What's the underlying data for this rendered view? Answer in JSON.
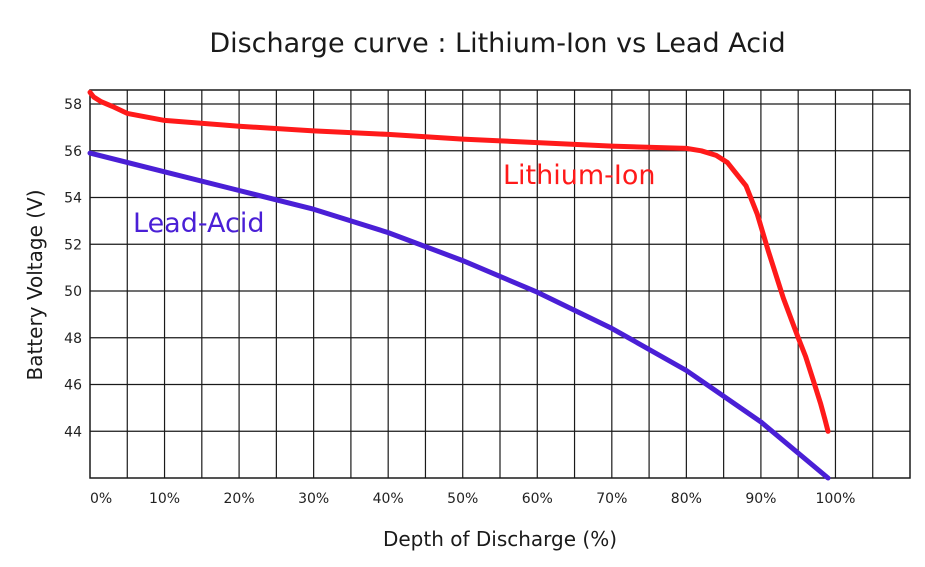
{
  "chart_data": {
    "type": "line",
    "title": "Discharge curve : Lithium-Ion vs Lead Acid",
    "xlabel": "Depth of Discharge (%)",
    "ylabel": "Battery Voltage (V)",
    "x_ticks": [
      "0%",
      "10%",
      "20%",
      "30%",
      "40%",
      "50%",
      "60%",
      "70%",
      "80%",
      "90%",
      "100%"
    ],
    "y_ticks": [
      "44",
      "46",
      "48",
      "50",
      "52",
      "54",
      "56",
      "58"
    ],
    "xlim": [
      0,
      110
    ],
    "ylim": [
      42,
      58.6
    ],
    "grid": true,
    "series": [
      {
        "name": "Lithium-Ion",
        "color": "#ff1a1a",
        "x": [
          0,
          0.5,
          1.5,
          3,
          5,
          10,
          20,
          30,
          40,
          50,
          60,
          70,
          80,
          82,
          84,
          85.5,
          86.5,
          88,
          89.5,
          91,
          93,
          95,
          96,
          97,
          98,
          98.6,
          99
        ],
        "y": [
          58.5,
          58.3,
          58.1,
          57.9,
          57.6,
          57.3,
          57.05,
          56.85,
          56.7,
          56.5,
          56.35,
          56.2,
          56.1,
          56.0,
          55.8,
          55.5,
          55.1,
          54.5,
          53.3,
          51.7,
          49.7,
          48.0,
          47.2,
          46.2,
          45.2,
          44.5,
          44.0
        ]
      },
      {
        "name": "Lead-Acid",
        "color": "#4a1fd6",
        "x": [
          0,
          10,
          20,
          30,
          40,
          50,
          60,
          70,
          80,
          90,
          99
        ],
        "y": [
          55.9,
          55.1,
          54.3,
          53.5,
          52.5,
          51.3,
          49.95,
          48.4,
          46.6,
          44.4,
          42.0
        ]
      }
    ]
  }
}
